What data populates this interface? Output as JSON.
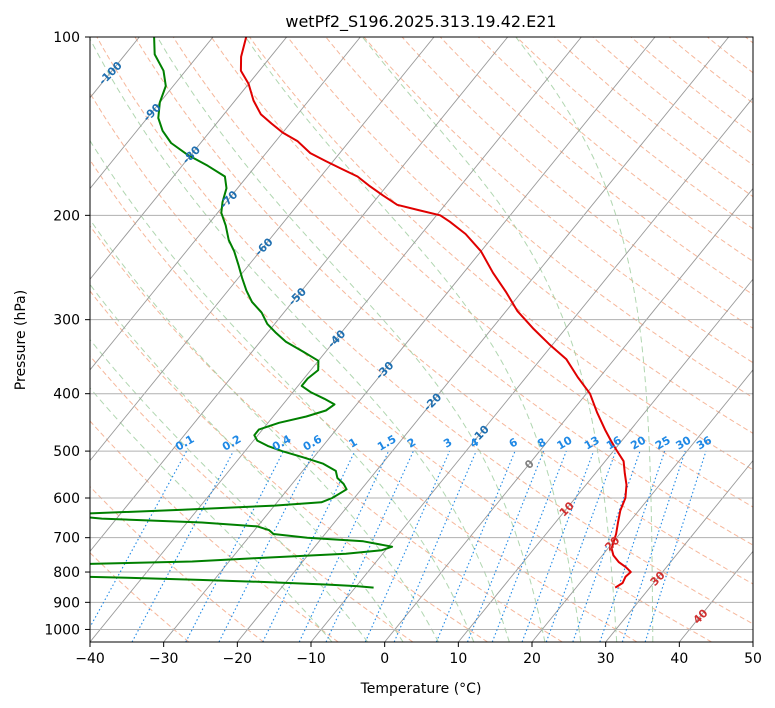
{
  "chart_data": {
    "type": "line",
    "subtype": "skew-t log-p sounding diagram",
    "title": "wetPf2_S196.2025.313.19.42.E21",
    "xlabel": "Temperature (°C)",
    "ylabel": "Pressure (hPa)",
    "xlim": [
      -40,
      50
    ],
    "ylim": [
      1050,
      100
    ],
    "grid": true,
    "x_ticks": [
      -40,
      -30,
      -20,
      -10,
      0,
      10,
      20,
      30,
      40,
      50
    ],
    "x_tick_labels": [
      "−40",
      "−30",
      "−20",
      "−10",
      "0",
      "10",
      "20",
      "30",
      "40",
      "50"
    ],
    "y_ticks": [
      1000,
      900,
      800,
      700,
      600,
      500,
      400,
      300,
      200,
      100
    ],
    "y_tick_labels": [
      "1000",
      "900",
      "800",
      "700",
      "600",
      "500",
      "400",
      "300",
      "200",
      "100"
    ],
    "colors": {
      "temperature": "#e00000",
      "dewpoint": "#008000",
      "isotherm": "#999999",
      "dry_adiabat": "#f4a582",
      "moist_adiabat": "#9ccc9c",
      "mixing_ratio": "#1e88e5",
      "isotherm_label_blue": "#1f6fb0",
      "isotherm_label_red": "#d03030",
      "isotherm_label_gray": "#808080"
    },
    "series": [
      {
        "name": "Temperature",
        "color": "#e00000",
        "points": [
          [
            25.3,
            850
          ],
          [
            25.8,
            835
          ],
          [
            25.5,
            815
          ],
          [
            25.7,
            800
          ],
          [
            24.5,
            785
          ],
          [
            23,
            770
          ],
          [
            21.5,
            750
          ],
          [
            20.5,
            730
          ],
          [
            20,
            710
          ],
          [
            19.5,
            690
          ],
          [
            18.5,
            660
          ],
          [
            17.5,
            630
          ],
          [
            16.8,
            600
          ],
          [
            15.5,
            570
          ],
          [
            14.0,
            545
          ],
          [
            12.5,
            520
          ],
          [
            10.5,
            500
          ],
          [
            8.5,
            480
          ],
          [
            6.5,
            460
          ],
          [
            3.5,
            430
          ],
          [
            0.5,
            400
          ],
          [
            -3,
            375
          ],
          [
            -6.5,
            350
          ],
          [
            -10.5,
            330
          ],
          [
            -14.5,
            310
          ],
          [
            -18.5,
            290
          ],
          [
            -22,
            270
          ],
          [
            -26,
            250
          ],
          [
            -30,
            230
          ],
          [
            -34,
            215
          ],
          [
            -37.5,
            205
          ],
          [
            -39.5,
            200
          ],
          [
            -43,
            196
          ],
          [
            -46.5,
            192
          ],
          [
            -49.5,
            185
          ],
          [
            -52.5,
            178
          ],
          [
            -55,
            172
          ],
          [
            -58,
            167
          ],
          [
            -61,
            162
          ],
          [
            -64,
            157
          ],
          [
            -67,
            150
          ],
          [
            -70,
            145
          ],
          [
            -72.5,
            140
          ],
          [
            -75,
            135
          ],
          [
            -77.5,
            128
          ],
          [
            -80,
            120
          ],
          [
            -82.5,
            114
          ],
          [
            -84,
            108
          ],
          [
            -85.5,
            100
          ]
        ]
      },
      {
        "name": "Dew point",
        "color": "#008000",
        "points": [
          [
            -7.5,
            850
          ],
          [
            -10,
            845
          ],
          [
            -14,
            840
          ],
          [
            -22.5,
            832
          ],
          [
            -32,
            825
          ],
          [
            -42,
            818
          ],
          [
            -52,
            812
          ],
          [
            -62,
            808
          ],
          [
            -70,
            805
          ],
          [
            -80,
            800
          ],
          [
            -90,
            795
          ],
          [
            -98,
            790
          ],
          [
            -55,
            778
          ],
          [
            -35,
            768
          ],
          [
            -27,
            758
          ],
          [
            -15,
            745
          ],
          [
            -10.5,
            735
          ],
          [
            -9.5,
            725
          ],
          [
            -14,
            710
          ],
          [
            -22,
            700
          ],
          [
            -27,
            690
          ],
          [
            -28,
            680
          ],
          [
            -30,
            670
          ],
          [
            -38,
            660
          ],
          [
            -52,
            650
          ],
          [
            -58,
            640
          ],
          [
            -42,
            628
          ],
          [
            -30,
            618
          ],
          [
            -24,
            610
          ],
          [
            -23,
            600
          ],
          [
            -22.5,
            590
          ],
          [
            -22,
            580
          ],
          [
            -23,
            568
          ],
          [
            -24.5,
            555
          ],
          [
            -25.5,
            540
          ],
          [
            -28,
            525
          ],
          [
            -31.5,
            512
          ],
          [
            -35,
            500
          ],
          [
            -37.5,
            490
          ],
          [
            -39.5,
            480
          ],
          [
            -40.5,
            470
          ],
          [
            -40.5,
            460
          ],
          [
            -38.5,
            448
          ],
          [
            -35.5,
            437
          ],
          [
            -33.5,
            427
          ],
          [
            -33,
            417
          ],
          [
            -35,
            408
          ],
          [
            -37.5,
            398
          ],
          [
            -39.5,
            388
          ],
          [
            -39.5,
            377
          ],
          [
            -39,
            365
          ],
          [
            -40,
            352
          ],
          [
            -43,
            340
          ],
          [
            -46.5,
            327
          ],
          [
            -49,
            315
          ],
          [
            -51,
            305
          ],
          [
            -53,
            292
          ],
          [
            -55.5,
            280
          ],
          [
            -57.5,
            268
          ],
          [
            -59.5,
            255
          ],
          [
            -61.5,
            242
          ],
          [
            -63.5,
            230
          ],
          [
            -65.5,
            220
          ],
          [
            -67.5,
            208
          ],
          [
            -69.5,
            198
          ],
          [
            -70.5,
            190
          ],
          [
            -71.5,
            180
          ],
          [
            -73,
            172
          ],
          [
            -76.5,
            165
          ],
          [
            -80.5,
            158
          ],
          [
            -84,
            151
          ],
          [
            -86.5,
            144
          ],
          [
            -88.5,
            137
          ],
          [
            -90,
            129
          ],
          [
            -91,
            121
          ],
          [
            -93,
            114
          ],
          [
            -96,
            107
          ],
          [
            -98,
            100
          ]
        ]
      }
    ],
    "isotherm_labels": [
      {
        "value": -100,
        "text": "-100",
        "p": 115
      },
      {
        "value": -90,
        "text": "-90",
        "p": 134
      },
      {
        "value": -80,
        "text": "-80",
        "p": 158
      },
      {
        "value": -70,
        "text": "-70",
        "p": 188
      },
      {
        "value": -60,
        "text": "-60",
        "p": 226
      },
      {
        "value": -50,
        "text": "-50",
        "p": 274
      },
      {
        "value": -40,
        "text": "-40",
        "p": 323
      },
      {
        "value": -30,
        "text": "-30",
        "p": 365
      },
      {
        "value": -20,
        "text": "-20",
        "p": 413
      },
      {
        "value": -10,
        "text": "-10",
        "p": 468
      },
      {
        "value": 0,
        "text": "0",
        "p": 526
      },
      {
        "value": 10,
        "text": "10",
        "p": 626
      },
      {
        "value": 20,
        "text": "20",
        "p": 716
      },
      {
        "value": 30,
        "text": "30",
        "p": 820
      },
      {
        "value": 40,
        "text": "40",
        "p": 950
      }
    ],
    "mixing_ratio_lines_g_per_kg": [
      0.1,
      0.2,
      0.4,
      0.6,
      1,
      1.5,
      2,
      3,
      4,
      6,
      8,
      10,
      13,
      16,
      20,
      25,
      30,
      36
    ],
    "mixing_ratio_labels": [
      "0.1",
      "0.2",
      "0.4",
      "0.6",
      "1",
      "1.5",
      "2",
      "3",
      "4",
      "6",
      "8",
      "10",
      "13",
      "16",
      "20",
      "25",
      "30",
      "36"
    ],
    "mixing_ratio_label_pressure": 500,
    "mixing_ratio_bottom_pressure": 1050,
    "dry_adiabats_theta_c": [
      -30,
      -20,
      -10,
      0,
      10,
      20,
      30,
      40,
      50,
      60,
      70,
      80,
      90,
      100,
      110,
      120,
      130,
      140,
      150,
      160,
      170,
      180,
      190,
      200,
      210,
      220
    ],
    "moist_adiabats_start_c": [
      -10,
      -5,
      0,
      5,
      10,
      15,
      20,
      25,
      30,
      35
    ],
    "moist_adiabats_ref_pressure": 1000
  }
}
